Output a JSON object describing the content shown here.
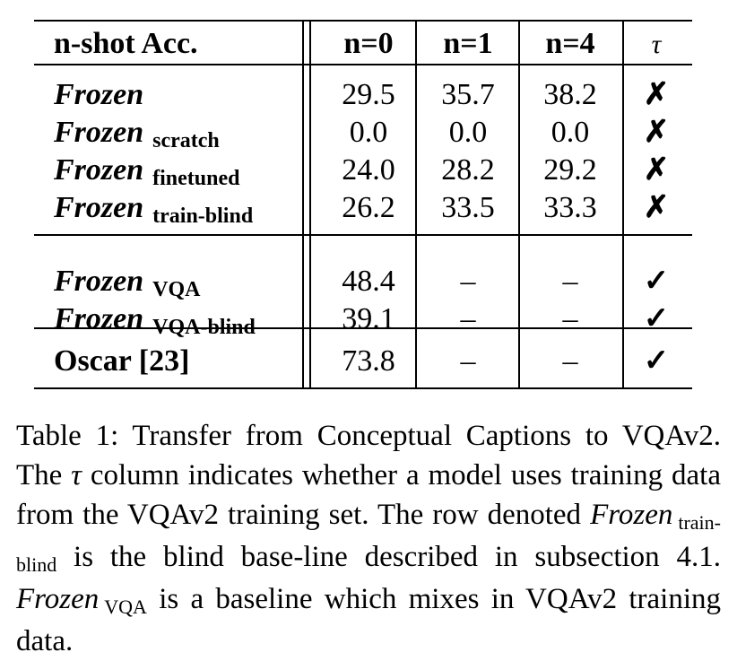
{
  "table": {
    "headers": {
      "metric": "n-shot Acc.",
      "n0": "n=0",
      "n1": "n=1",
      "n4": "n=4",
      "tau": "τ"
    },
    "groups": [
      {
        "rows": [
          {
            "name": "Frozen",
            "sub": "",
            "n0": "29.5",
            "n1": "35.7",
            "n4": "38.2",
            "tau": "✗"
          },
          {
            "name": "Frozen",
            "sub": "scratch",
            "n0": "0.0",
            "n1": "0.0",
            "n4": "0.0",
            "tau": "✗"
          },
          {
            "name": "Frozen",
            "sub": "finetuned",
            "n0": "24.0",
            "n1": "28.2",
            "n4": "29.2",
            "tau": "✗"
          },
          {
            "name": "Frozen",
            "sub": "train-blind",
            "n0": "26.2",
            "n1": "33.5",
            "n4": "33.3",
            "tau": "✗"
          }
        ]
      },
      {
        "rows": [
          {
            "name": "Frozen",
            "sub": "VQA",
            "n0": "48.4",
            "n1": "–",
            "n4": "–",
            "tau": "✓"
          },
          {
            "name": "Frozen",
            "sub": "VQA-blind",
            "n0": "39.1",
            "n1": "–",
            "n4": "–",
            "tau": "✓"
          }
        ]
      },
      {
        "rows": [
          {
            "name": "Oscar [23]",
            "sub": "",
            "n0": "73.8",
            "n1": "–",
            "n4": "–",
            "tau": "✓"
          }
        ]
      }
    ]
  },
  "caption": {
    "p1": "Table 1:  Transfer from Conceptual Captions to VQAv2. The ",
    "tau": "τ",
    "p2": " column indicates whether a model uses training data from the VQAv2 training set. The row denoted ",
    "frozen1": "Frozen",
    "sub1": "train-blind",
    "p3": " is the blind base-line described in subsection 4.1. ",
    "frozen2": "Frozen",
    "sub2": "VQA",
    "p4": " is a baseline which mixes in VQAv2 training data."
  }
}
